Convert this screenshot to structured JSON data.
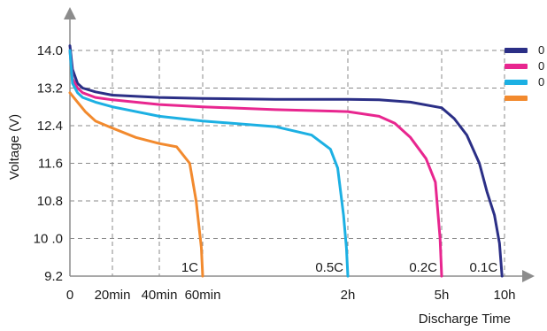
{
  "chart_data": {
    "type": "line",
    "ylabel": "Voltage (V)",
    "xlabel": "Discharge Time",
    "ylim": [
      9.2,
      14.0
    ],
    "grid": true,
    "legend_placement": "top-right",
    "x_ticks": [
      {
        "label": "0",
        "t": 0
      },
      {
        "label": "20min",
        "t": 0.333
      },
      {
        "label": "40min",
        "t": 0.667
      },
      {
        "label": "60min",
        "t": 1.0
      },
      {
        "label": "2h",
        "t": 2
      },
      {
        "label": "5h",
        "t": 5
      },
      {
        "label": "10h",
        "t": 10
      }
    ],
    "x_unit": "hours",
    "y_ticks": [
      {
        "label": "14.0",
        "v": 14.0
      },
      {
        "label": "13.2",
        "v": 13.2
      },
      {
        "label": "12.4",
        "v": 12.4
      },
      {
        "label": "11.6",
        "v": 11.6
      },
      {
        "label": "10.8",
        "v": 10.8
      },
      {
        "label": "10 .0",
        "v": 10.0
      },
      {
        "label": "9.2",
        "v": 9.2
      }
    ],
    "legend": [
      {
        "label": "0",
        "color": "#2b2f86"
      },
      {
        "label": "0",
        "color": "#e8268f"
      },
      {
        "label": "0",
        "color": "#1cb0e3"
      },
      {
        "label": "",
        "color": "#f28a2e"
      }
    ],
    "series": [
      {
        "curve_label": "0.1C",
        "color": "#2b2f86",
        "points": [
          [
            0,
            14.1
          ],
          [
            0.02,
            13.6
          ],
          [
            0.06,
            13.3
          ],
          [
            0.1,
            13.2
          ],
          [
            0.2,
            13.12
          ],
          [
            0.333,
            13.05
          ],
          [
            0.667,
            13.0
          ],
          [
            1,
            12.98
          ],
          [
            1.5,
            12.96
          ],
          [
            2,
            12.96
          ],
          [
            3,
            12.95
          ],
          [
            4,
            12.9
          ],
          [
            5,
            12.78
          ],
          [
            6,
            12.55
          ],
          [
            7,
            12.2
          ],
          [
            8,
            11.6
          ],
          [
            8.6,
            11.0
          ],
          [
            9.2,
            10.5
          ],
          [
            9.6,
            9.9
          ],
          [
            9.8,
            9.2
          ]
        ]
      },
      {
        "curve_label": "0.2C",
        "color": "#e8268f",
        "points": [
          [
            0,
            14.0
          ],
          [
            0.02,
            13.4
          ],
          [
            0.06,
            13.2
          ],
          [
            0.1,
            13.1
          ],
          [
            0.2,
            13.0
          ],
          [
            0.333,
            12.95
          ],
          [
            0.667,
            12.85
          ],
          [
            1,
            12.8
          ],
          [
            1.5,
            12.74
          ],
          [
            2,
            12.7
          ],
          [
            3,
            12.6
          ],
          [
            3.5,
            12.45
          ],
          [
            4,
            12.15
          ],
          [
            4.5,
            11.7
          ],
          [
            4.8,
            11.2
          ],
          [
            4.95,
            10.0
          ],
          [
            5,
            9.2
          ]
        ]
      },
      {
        "curve_label": "0.5C",
        "color": "#1cb0e3",
        "points": [
          [
            0,
            14.0
          ],
          [
            0.02,
            13.3
          ],
          [
            0.06,
            13.1
          ],
          [
            0.1,
            13.0
          ],
          [
            0.2,
            12.9
          ],
          [
            0.333,
            12.8
          ],
          [
            0.667,
            12.6
          ],
          [
            1,
            12.5
          ],
          [
            1.5,
            12.38
          ],
          [
            1.75,
            12.2
          ],
          [
            1.88,
            11.9
          ],
          [
            1.93,
            11.5
          ],
          [
            1.97,
            10.5
          ],
          [
            1.99,
            9.8
          ],
          [
            2,
            9.2
          ]
        ]
      },
      {
        "curve_label": "1C",
        "color": "#f28a2e",
        "points": [
          [
            0,
            13.1
          ],
          [
            0.06,
            12.9
          ],
          [
            0.12,
            12.7
          ],
          [
            0.2,
            12.5
          ],
          [
            0.333,
            12.35
          ],
          [
            0.5,
            12.15
          ],
          [
            0.667,
            12.02
          ],
          [
            0.8,
            11.95
          ],
          [
            0.9,
            11.6
          ],
          [
            0.95,
            10.8
          ],
          [
            0.99,
            9.8
          ],
          [
            1,
            9.2
          ]
        ]
      }
    ]
  }
}
